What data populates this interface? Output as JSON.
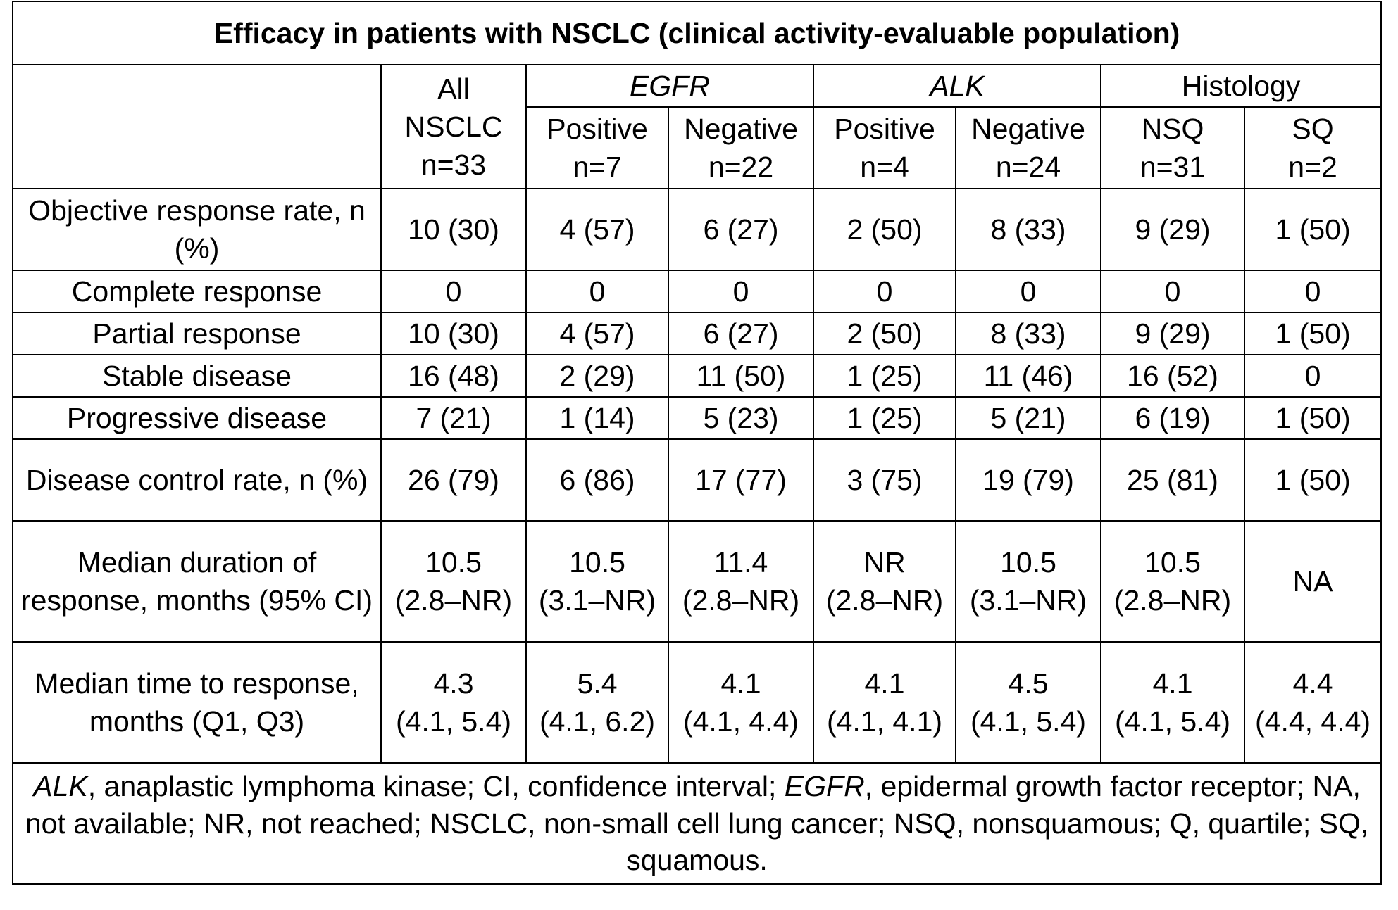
{
  "table": {
    "title": "Efficacy in patients with NSCLC (clinical activity-evaluable population)",
    "header": {
      "all_col": {
        "line1": "All",
        "line2": "NSCLC",
        "line3": "n=33"
      },
      "groups": [
        {
          "label": "EGFR",
          "italic": true
        },
        {
          "label": "ALK",
          "italic": true
        },
        {
          "label": "Histology",
          "italic": false
        }
      ],
      "subcols": [
        {
          "label": "Positive",
          "n": "n=7"
        },
        {
          "label": "Negative",
          "n": "n=22"
        },
        {
          "label": "Positive",
          "n": "n=4"
        },
        {
          "label": "Negative",
          "n": "n=24"
        },
        {
          "label": "NSQ",
          "n": "n=31"
        },
        {
          "label": "SQ",
          "n": "n=2"
        }
      ]
    },
    "rows": [
      {
        "label": "Objective response rate, n (%)",
        "indent": false,
        "cells": [
          "10 (30)",
          "4 (57)",
          "6 (27)",
          "2 (50)",
          "8 (33)",
          "9 (29)",
          "1 (50)"
        ]
      },
      {
        "label": "Complete response",
        "indent": true,
        "cells": [
          "0",
          "0",
          "0",
          "0",
          "0",
          "0",
          "0"
        ]
      },
      {
        "label": "Partial response",
        "indent": true,
        "cells": [
          "10 (30)",
          "4 (57)",
          "6 (27)",
          "2 (50)",
          "8 (33)",
          "9 (29)",
          "1 (50)"
        ]
      },
      {
        "label": "Stable disease",
        "indent": true,
        "cells": [
          "16 (48)",
          "2 (29)",
          "11 (50)",
          "1 (25)",
          "11 (46)",
          "16 (52)",
          "0"
        ]
      },
      {
        "label": "Progressive disease",
        "indent": true,
        "cells": [
          "7 (21)",
          "1 (14)",
          "5 (23)",
          "1 (25)",
          "5 (21)",
          "6 (19)",
          "1 (50)"
        ]
      },
      {
        "label": "Disease control rate, n (%)",
        "indent": false,
        "cells": [
          "26 (79)",
          "6 (86)",
          "17 (77)",
          "3 (75)",
          "19 (79)",
          "25 (81)",
          "1 (50)"
        ]
      },
      {
        "label": "Median duration of response, months (95% CI)",
        "indent": false,
        "cells": [
          [
            "10.5",
            "(2.8–NR)"
          ],
          [
            "10.5",
            "(3.1–NR)"
          ],
          [
            "11.4",
            "(2.8–NR)"
          ],
          [
            "NR",
            "(2.8–NR)"
          ],
          [
            "10.5",
            "(3.1–NR)"
          ],
          [
            "10.5",
            "(2.8–NR)"
          ],
          [
            "NA"
          ]
        ]
      },
      {
        "label": "Median time to response, months (Q1, Q3)",
        "indent": false,
        "cells": [
          [
            "4.3",
            "(4.1, 5.4)"
          ],
          [
            "5.4",
            "(4.1, 6.2)"
          ],
          [
            "4.1",
            "(4.1, 4.4)"
          ],
          [
            "4.1",
            "(4.1, 4.1)"
          ],
          [
            "4.5",
            "(4.1, 5.4)"
          ],
          [
            "4.1",
            "(4.1, 5.4)"
          ],
          [
            "4.4",
            "(4.4, 4.4)"
          ]
        ]
      }
    ],
    "footnote": {
      "segments": [
        {
          "text": "ALK",
          "italic": true
        },
        {
          "text": ", anaplastic lymphoma kinase; CI, confidence interval; ",
          "italic": false
        },
        {
          "text": "EGFR",
          "italic": true
        },
        {
          "text": ", epidermal growth factor receptor; NA, not available; NR, not reached; NSCLC, non-small cell lung cancer; NSQ, nonsquamous; Q, quartile; SQ, squamous.",
          "italic": false
        }
      ]
    }
  }
}
